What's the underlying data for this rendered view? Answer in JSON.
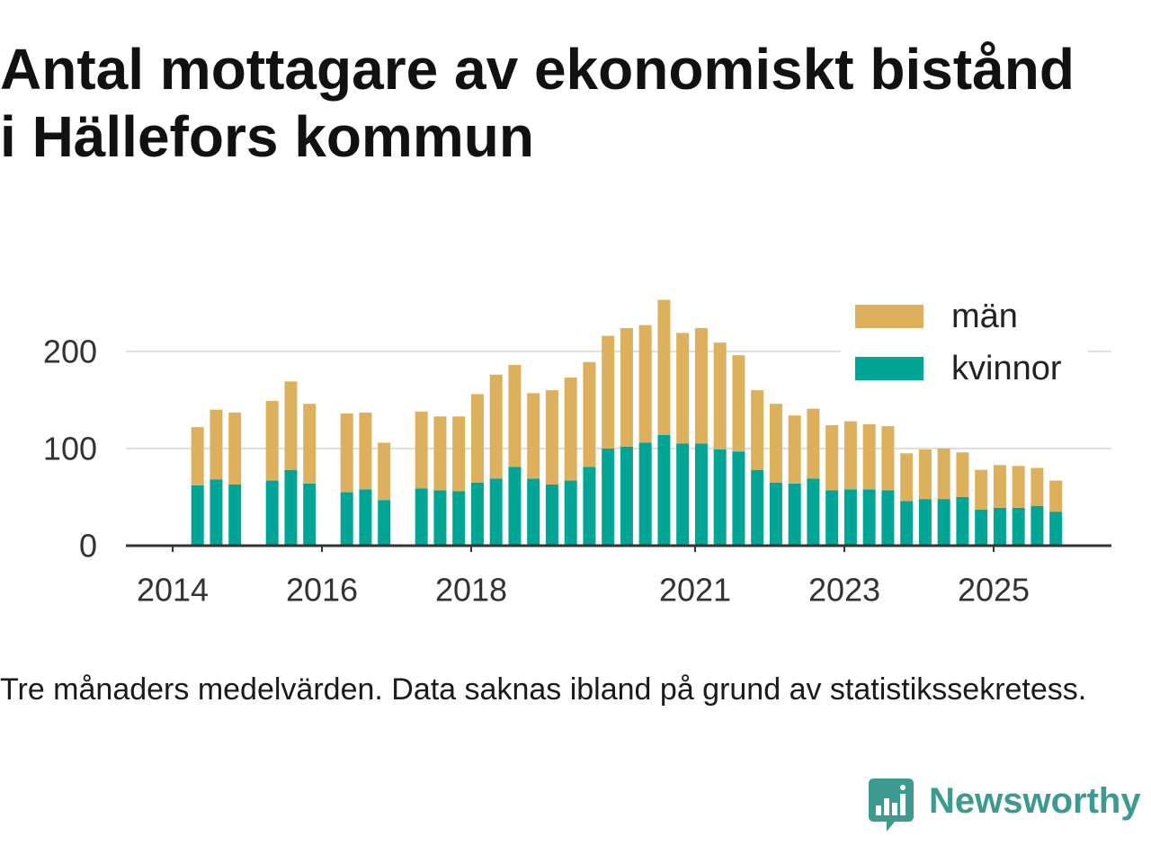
{
  "chart_data": {
    "type": "bar",
    "stacked": true,
    "title": "Antal mottagare av ekonomiskt bistånd i Hällefors kommun",
    "x": [
      "2014-05",
      "2014-08",
      "2014-11",
      "2015-05",
      "2015-08",
      "2015-11",
      "2016-05",
      "2016-08",
      "2016-11",
      "2017-05",
      "2017-08",
      "2017-11",
      "2018-02",
      "2018-05",
      "2018-08",
      "2018-11",
      "2019-02",
      "2019-05",
      "2019-08",
      "2019-11",
      "2020-02",
      "2020-05",
      "2020-08",
      "2020-11",
      "2021-02",
      "2021-05",
      "2021-08",
      "2021-11",
      "2022-02",
      "2022-05",
      "2022-08",
      "2022-11",
      "2023-02",
      "2023-05",
      "2023-08",
      "2023-11",
      "2024-02",
      "2024-05",
      "2024-08",
      "2024-11",
      "2025-02",
      "2025-05",
      "2025-08",
      "2025-11"
    ],
    "series": [
      {
        "name": "kvinnor",
        "color": "#00a596",
        "values": [
          62,
          68,
          63,
          67,
          78,
          64,
          55,
          58,
          47,
          59,
          57,
          56,
          65,
          69,
          81,
          69,
          63,
          67,
          81,
          100,
          102,
          106,
          114,
          105,
          105,
          99,
          97,
          78,
          65,
          64,
          69,
          57,
          58,
          58,
          57,
          46,
          48,
          48,
          50,
          37,
          39,
          39,
          41,
          35
        ]
      },
      {
        "name": "män",
        "color": "#ddb05e",
        "values": [
          60,
          72,
          74,
          82,
          91,
          82,
          81,
          79,
          59,
          79,
          76,
          77,
          91,
          107,
          105,
          88,
          97,
          106,
          108,
          116,
          122,
          121,
          139,
          114,
          119,
          110,
          99,
          82,
          81,
          70,
          72,
          67,
          70,
          67,
          66,
          49,
          51,
          52,
          46,
          41,
          44,
          43,
          39,
          32
        ]
      }
    ],
    "xticks": [
      "2014",
      "2016",
      "2018",
      "2021",
      "2023",
      "2025"
    ],
    "yticks": [
      0,
      100,
      200
    ],
    "xlim": [
      "2013-05",
      "2026-08"
    ],
    "ylim": [
      0,
      260
    ],
    "grid": "horizontal",
    "legend": "top-right"
  },
  "footnote": "Tre månaders medelvärden. Data saknas ibland på grund av statistikssekretess.",
  "logo": {
    "text": "Newsworthy",
    "icon": "newsworthy-logo-icon",
    "color": "#3d9a8e"
  }
}
